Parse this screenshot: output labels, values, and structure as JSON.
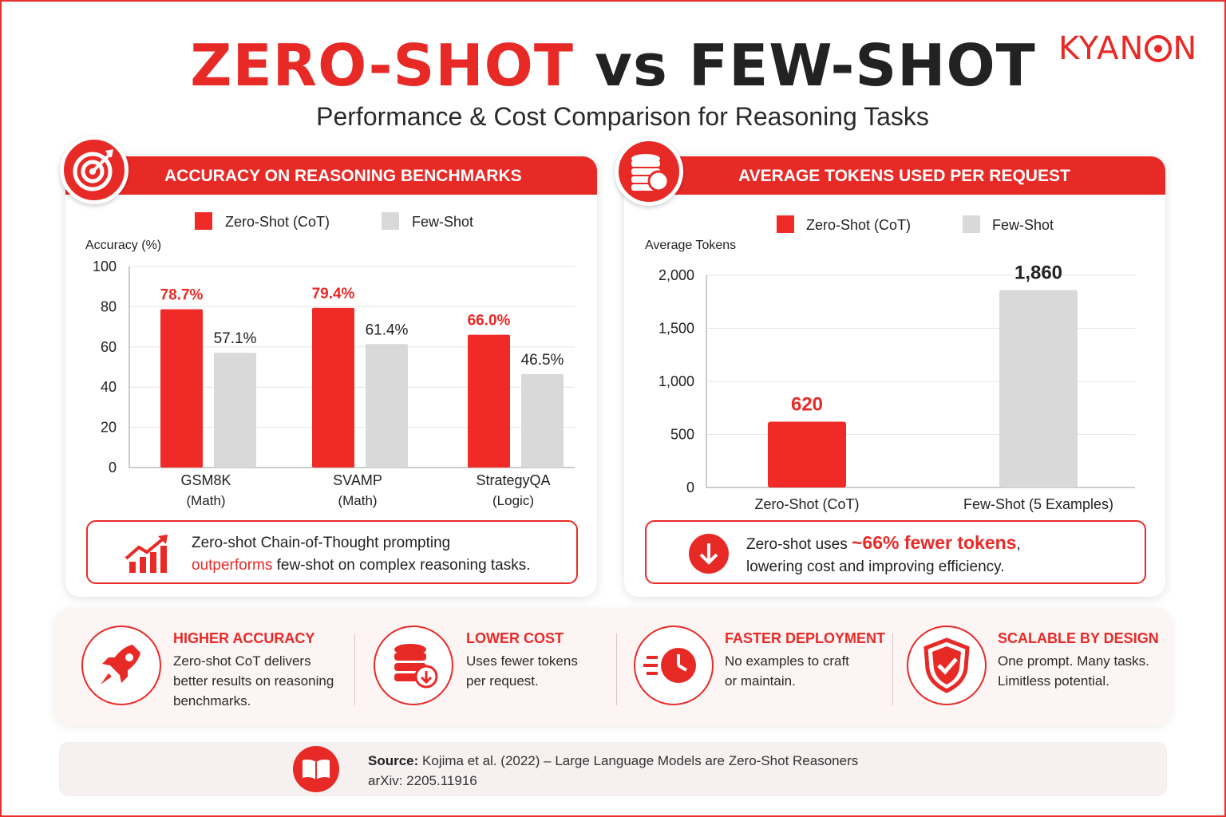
{
  "title": {
    "part1": "ZERO-SHOT",
    "part2": "vs",
    "part3": "FEW-SHOT"
  },
  "subtitle": "Performance & Cost Comparison for Reasoning Tasks",
  "brand": {
    "before": "KYAN",
    "after": "N"
  },
  "colors": {
    "accent": "#e82a27",
    "zero_shot_bar": "#f02a27",
    "few_shot_bar": "#d9d9d9"
  },
  "left_panel": {
    "header": "ACCURACY ON REASONING BENCHMARKS",
    "icon": "target-icon",
    "callout": {
      "line1": "Zero-shot Chain-of-Thought prompting",
      "line2_highlight": "outperforms",
      "line2_rest": " few-shot on complex reasoning tasks.",
      "icon": "rising-chart-icon"
    }
  },
  "right_panel": {
    "header": "AVERAGE TOKENS USED PER REQUEST",
    "icon": "coins-stack-icon",
    "callout": {
      "line1_start": "Zero-shot uses ",
      "line1_highlight": "~66% fewer tokens",
      "line1_end": ",",
      "line2": "lowering cost and improving efficiency.",
      "icon": "arrow-down-circle-icon"
    }
  },
  "chart_data": [
    {
      "type": "bar",
      "title": "ACCURACY ON REASONING BENCHMARKS",
      "ylabel": "Accuracy (%)",
      "ylim": [
        0,
        100
      ],
      "yticks": [
        "0",
        "20",
        "40",
        "60",
        "80",
        "100"
      ],
      "grid": true,
      "legend_position": "top",
      "categories": [
        "GSM8K",
        "SVAMP",
        "StrategyQA"
      ],
      "category_sublabels": [
        "(Math)",
        "(Math)",
        "(Logic)"
      ],
      "series": [
        {
          "name": "Zero-Shot (CoT)",
          "values": [
            78.7,
            79.4,
            66.0
          ],
          "labels": [
            "78.7%",
            "79.4%",
            "66.0%"
          ]
        },
        {
          "name": "Few-Shot",
          "values": [
            57.1,
            61.4,
            46.5
          ],
          "labels": [
            "57.1%",
            "61.4%",
            "46.5%"
          ]
        }
      ]
    },
    {
      "type": "bar",
      "title": "AVERAGE TOKENS USED PER REQUEST",
      "ylabel": "Average Tokens",
      "ylim": [
        0,
        2000
      ],
      "yticks": [
        "0",
        "500",
        "1,000",
        "1,500",
        "2,000"
      ],
      "grid": true,
      "legend_position": "top",
      "legend": [
        "Zero-Shot (CoT)",
        "Few-Shot"
      ],
      "categories": [
        "Zero-Shot (CoT)",
        "Few-Shot (5 Examples)"
      ],
      "values": [
        620,
        1860
      ],
      "labels": [
        "620",
        "1,860"
      ]
    }
  ],
  "features": [
    {
      "title": "HIGHER ACCURACY",
      "lines": [
        "Zero-shot CoT delivers",
        "better results on reasoning",
        "benchmarks."
      ],
      "icon": "rocket-icon"
    },
    {
      "title": "LOWER COST",
      "lines": [
        "Uses fewer tokens",
        "per request."
      ],
      "icon": "database-down-icon"
    },
    {
      "title": "FASTER DEPLOYMENT",
      "lines": [
        "No examples to craft",
        "or maintain."
      ],
      "icon": "fast-clock-icon"
    },
    {
      "title": "SCALABLE BY DESIGN",
      "lines": [
        "One prompt. Many tasks.",
        "Limitless potential."
      ],
      "icon": "shield-check-icon"
    }
  ],
  "source": {
    "label": "Source:",
    "text": " Kojima et al. (2022) – Large Language Models are Zero-Shot Reasoners",
    "line2": "arXiv: 2205.11916",
    "icon": "open-book-icon"
  }
}
